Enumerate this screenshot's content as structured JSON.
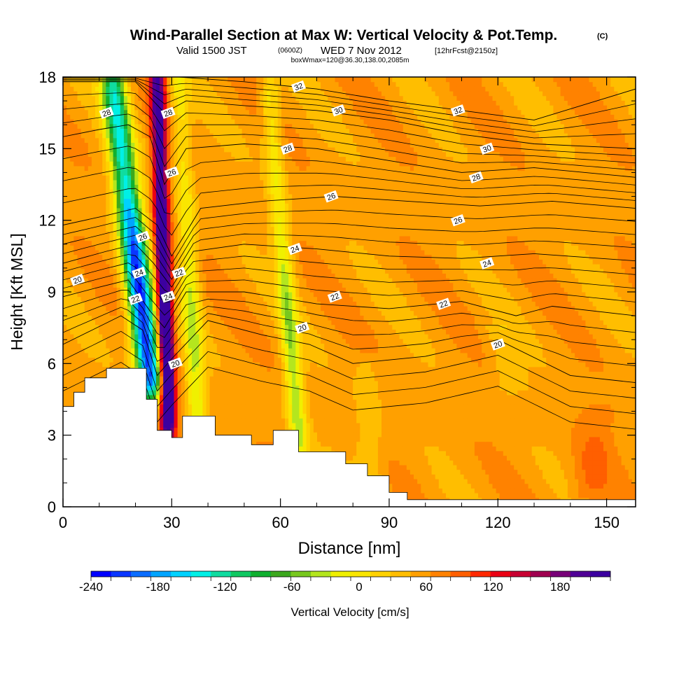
{
  "header": {
    "title": "Wind-Parallel Section at Max W: Vertical Velocity & Pot.Temp.",
    "copyright": "(C)",
    "valid_prefix": "Valid 1500 JST",
    "valid_z": "(0600Z)",
    "valid_date": "WED 7 Nov 2012",
    "forecast": "[12hrFcst@2150z]",
    "box_info": "boxWmax=120@36.30,138.00,2085m"
  },
  "chart_data": {
    "type": "heatmap",
    "xlabel": "Distance [nm]",
    "ylabel": "Height [Kft MSL]",
    "xlim": [
      0,
      158
    ],
    "ylim": [
      0,
      18
    ],
    "x_ticks": [
      "0",
      "30",
      "60",
      "90",
      "120",
      "150"
    ],
    "y_ticks": [
      "0",
      "3",
      "6",
      "9",
      "12",
      "15",
      "18"
    ],
    "colorbar": {
      "label": "Vertical Velocity [cm/s]",
      "min": -240,
      "max": 210,
      "step": 15,
      "tick_labels": [
        "-240",
        "-180",
        "-120",
        "-60",
        "0",
        "60",
        "120",
        "180"
      ],
      "colors": [
        "#0000ff",
        "#0a36ff",
        "#0a6dff",
        "#00a5ff",
        "#00d2ff",
        "#00f0e6",
        "#10dca0",
        "#10c862",
        "#10b030",
        "#3ca81e",
        "#78c81e",
        "#b4e61e",
        "#f0f000",
        "#fae600",
        "#ffd200",
        "#ffbe00",
        "#ffa000",
        "#ff8200",
        "#ff5f00",
        "#ff2800",
        "#eb0014",
        "#c80032",
        "#a00050",
        "#780078",
        "#500096",
        "#3c00a0"
      ]
    },
    "terrain_kft": [
      [
        0,
        4.2
      ],
      [
        3,
        4.8
      ],
      [
        6,
        5.4
      ],
      [
        12,
        5.8
      ],
      [
        23,
        4.5
      ],
      [
        26,
        3.2
      ],
      [
        30,
        2.9
      ],
      [
        33,
        3.8
      ],
      [
        42,
        3.0
      ],
      [
        52,
        2.6
      ],
      [
        58,
        3.2
      ],
      [
        65,
        2.3
      ],
      [
        72,
        2.3
      ],
      [
        78,
        1.8
      ],
      [
        84,
        1.3
      ],
      [
        90,
        0.6
      ],
      [
        95,
        0.3
      ],
      [
        158,
        0.3
      ]
    ],
    "vertical_velocity_features": [
      {
        "name": "downdraft-core",
        "x_base": 24,
        "y_base": 5.5,
        "x_top": 14,
        "y_top": 17.5,
        "width_nm": 7,
        "peak_cm_s": -240
      },
      {
        "name": "updraft-core",
        "x_base": 29,
        "y_base": 4.0,
        "x_top": 26,
        "y_top": 18,
        "width_nm": 4,
        "peak_cm_s": 210
      },
      {
        "name": "downdraft-band-2",
        "x_base": 65,
        "y_base": 3.0,
        "x_top": 57,
        "y_top": 17,
        "width_nm": 5,
        "peak_cm_s": -80
      },
      {
        "name": "downdraft-band-3",
        "x_base": 37,
        "y_base": 4.0,
        "x_top": 32,
        "y_top": 18,
        "width_nm": 5,
        "peak_cm_s": -70
      },
      {
        "name": "weak-downdraft-4",
        "x_base": 85,
        "y_base": 0.5,
        "x_top": 84,
        "y_top": 6,
        "width_nm": 8,
        "peak_cm_s": -25
      },
      {
        "name": "weak-downdraft-5",
        "x_base": 124,
        "y_base": 5.0,
        "x_top": 120,
        "y_top": 7.5,
        "width_nm": 8,
        "peak_cm_s": -25
      },
      {
        "name": "weak-updraft-6",
        "x_base": 145,
        "y_base": 0.5,
        "x_top": 148,
        "y_top": 4,
        "width_nm": 10,
        "peak_cm_s": 25
      }
    ],
    "theta_contours": [
      {
        "label": "20",
        "points": [
          [
            0,
            6.8
          ],
          [
            8,
            7.4
          ],
          [
            16,
            8.0
          ],
          [
            22,
            7.4
          ],
          [
            26,
            5.5
          ],
          [
            30,
            6.2
          ],
          [
            40,
            7.8
          ],
          [
            55,
            7.2
          ],
          [
            68,
            6.8
          ],
          [
            80,
            6.0
          ],
          [
            100,
            6.3
          ],
          [
            120,
            7.0
          ],
          [
            140,
            5.5
          ],
          [
            158,
            5.2
          ]
        ],
        "labels_at": [
          [
            4,
            9.5
          ],
          [
            31,
            6.0
          ],
          [
            66,
            7.5
          ],
          [
            120,
            6.8
          ]
        ]
      },
      {
        "label": "22",
        "points": [
          [
            0,
            8.8
          ],
          [
            10,
            9.2
          ],
          [
            18,
            9.5
          ],
          [
            24,
            8.2
          ],
          [
            28,
            7.5
          ],
          [
            34,
            9.0
          ],
          [
            50,
            9.0
          ],
          [
            70,
            8.5
          ],
          [
            90,
            8.3
          ],
          [
            110,
            8.6
          ],
          [
            125,
            8.0
          ],
          [
            135,
            8.4
          ],
          [
            158,
            8.0
          ]
        ],
        "labels_at": [
          [
            20,
            8.7
          ],
          [
            32,
            9.8
          ],
          [
            75,
            8.8
          ],
          [
            105,
            8.5
          ]
        ]
      },
      {
        "label": "24",
        "points": [
          [
            0,
            10.2
          ],
          [
            12,
            10.7
          ],
          [
            20,
            11.0
          ],
          [
            25,
            10.2
          ],
          [
            30,
            9.2
          ],
          [
            36,
            10.7
          ],
          [
            50,
            11.0
          ],
          [
            70,
            10.8
          ],
          [
            90,
            10.5
          ],
          [
            110,
            10.4
          ],
          [
            130,
            10.6
          ],
          [
            158,
            10.3
          ]
        ],
        "labels_at": [
          [
            21,
            9.8
          ],
          [
            29,
            8.8
          ],
          [
            64,
            10.8
          ],
          [
            117,
            10.2
          ]
        ]
      },
      {
        "label": "26",
        "points": [
          [
            0,
            11.8
          ],
          [
            12,
            12.2
          ],
          [
            20,
            12.5
          ],
          [
            26,
            11.8
          ],
          [
            30,
            10.5
          ],
          [
            38,
            12.5
          ],
          [
            55,
            12.8
          ],
          [
            75,
            13.0
          ],
          [
            95,
            12.8
          ],
          [
            115,
            12.6
          ],
          [
            135,
            12.8
          ],
          [
            158,
            12.5
          ]
        ],
        "labels_at": [
          [
            22,
            11.3
          ],
          [
            30,
            14.0
          ],
          [
            74,
            13.0
          ],
          [
            109,
            12.0
          ]
        ]
      },
      {
        "label": "28",
        "points": [
          [
            0,
            15.5
          ],
          [
            10,
            15.8
          ],
          [
            18,
            16.0
          ],
          [
            24,
            15.5
          ],
          [
            28,
            13.5
          ],
          [
            34,
            15.0
          ],
          [
            50,
            15.2
          ],
          [
            70,
            15.0
          ],
          [
            90,
            14.5
          ],
          [
            110,
            14.0
          ],
          [
            130,
            14.2
          ],
          [
            158,
            13.8
          ]
        ],
        "labels_at": [
          [
            12,
            16.5
          ],
          [
            29,
            16.5
          ],
          [
            62,
            15.0
          ],
          [
            114,
            13.8
          ]
        ]
      },
      {
        "label": "30",
        "points": [
          [
            0,
            17.8
          ],
          [
            20,
            17.8
          ],
          [
            28,
            16.5
          ],
          [
            34,
            17.0
          ],
          [
            50,
            16.8
          ],
          [
            70,
            16.6
          ],
          [
            90,
            16.2
          ],
          [
            110,
            15.6
          ],
          [
            130,
            15.2
          ],
          [
            158,
            15.0
          ]
        ],
        "labels_at": [
          [
            76,
            16.6
          ],
          [
            117,
            15.0
          ]
        ]
      },
      {
        "label": "32",
        "points": [
          [
            32,
            18
          ],
          [
            50,
            17.8
          ],
          [
            70,
            17.5
          ],
          [
            90,
            17.0
          ],
          [
            110,
            16.6
          ],
          [
            130,
            16.2
          ],
          [
            158,
            17.5
          ]
        ],
        "labels_at": [
          [
            65,
            17.6
          ],
          [
            109,
            16.6
          ]
        ]
      }
    ],
    "theta_contours_unlabeled_count": 18
  }
}
